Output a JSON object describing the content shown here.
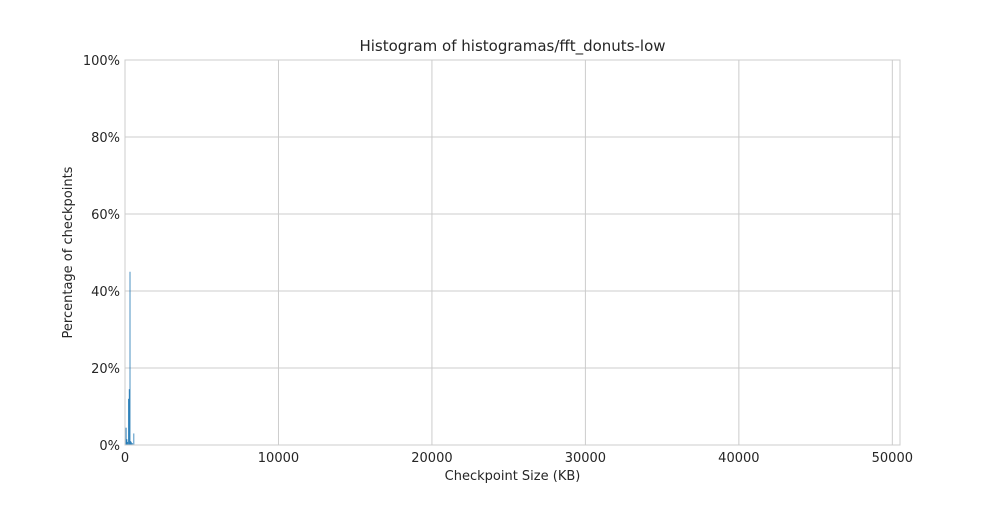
{
  "chart_data": {
    "type": "bar",
    "title": "Histogram of histogramas/fft_donuts-low",
    "xlabel": "Checkpoint Size (KB)",
    "ylabel": "Percentage of checkpoints",
    "xlim": [
      0,
      50500
    ],
    "ylim": [
      0,
      100
    ],
    "x_ticks": [
      0,
      10000,
      20000,
      30000,
      40000,
      50000
    ],
    "x_tick_labels": [
      "0",
      "10000",
      "20000",
      "30000",
      "40000",
      "50000"
    ],
    "y_ticks": [
      0,
      20,
      40,
      60,
      80,
      100
    ],
    "y_tick_labels": [
      "0%",
      "20%",
      "40%",
      "60%",
      "80%",
      "100%"
    ],
    "grid": true,
    "bar_color": "#1f77b4",
    "bins": [
      {
        "x0": 40,
        "x1": 100,
        "value": 4.5
      },
      {
        "x0": 100,
        "x1": 150,
        "value": 1.5
      },
      {
        "x0": 150,
        "x1": 200,
        "value": 0.8
      },
      {
        "x0": 200,
        "x1": 250,
        "value": 12.0
      },
      {
        "x0": 250,
        "x1": 300,
        "value": 14.5
      },
      {
        "x0": 300,
        "x1": 350,
        "value": 45.0
      },
      {
        "x0": 350,
        "x1": 400,
        "value": 1.0
      },
      {
        "x0": 400,
        "x1": 450,
        "value": 0.7
      },
      {
        "x0": 450,
        "x1": 500,
        "value": 0.5
      },
      {
        "x0": 550,
        "x1": 600,
        "value": 3.0
      }
    ]
  }
}
